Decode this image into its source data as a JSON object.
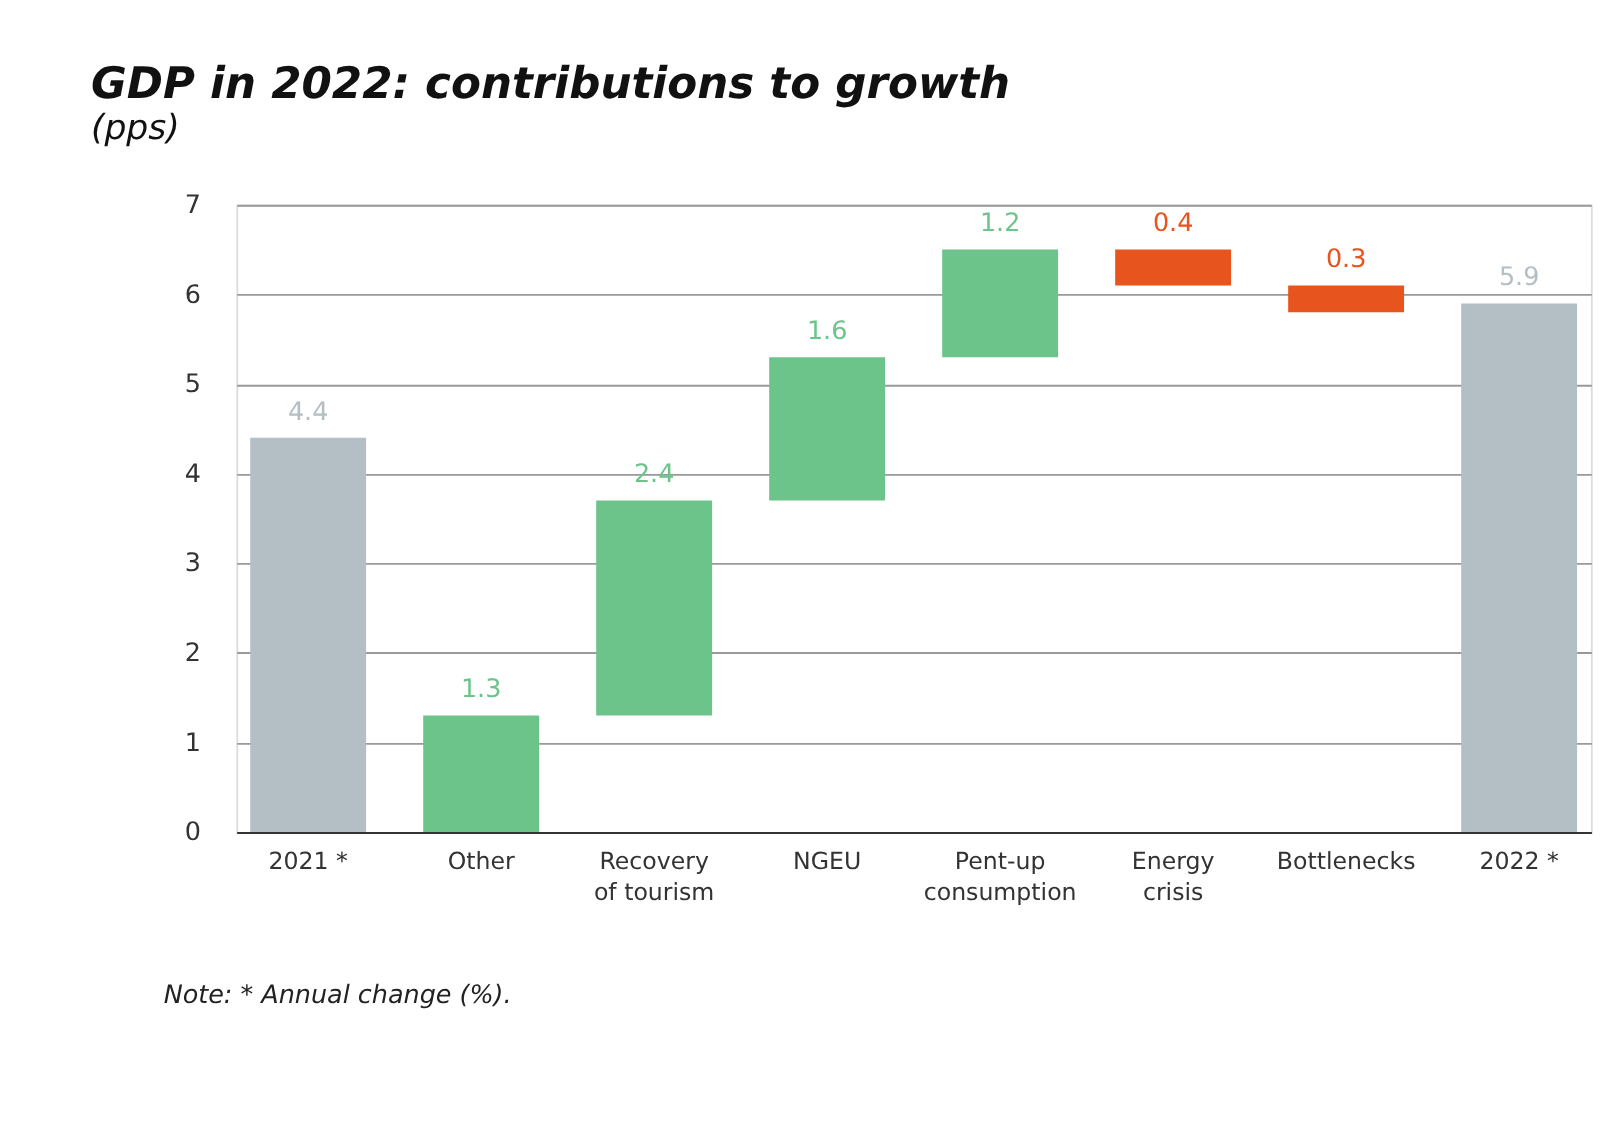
{
  "chart_data": {
    "type": "bar",
    "title": "GDP in 2022: contributions to growth",
    "subtitle": "(pps)",
    "categories": [
      "2021 *",
      "Other",
      "Recovery\nof tourism",
      "NGEU",
      "Pent-up\nconsumption",
      "Energy\ncrisis",
      "Bottlenecks",
      "2022 *"
    ],
    "values": [
      4.4,
      1.3,
      2.4,
      1.6,
      1.2,
      -0.4,
      -0.3,
      5.9
    ],
    "base": [
      0,
      0,
      1.3,
      3.7,
      5.3,
      6.5,
      6.1,
      0
    ],
    "colors": [
      "#b4bfc5",
      "#6cc48a",
      "#6cc48a",
      "#6cc48a",
      "#6cc48a",
      "#e8541e",
      "#e8541e",
      "#b4bfc5"
    ],
    "value_labels": [
      "4.4",
      "1.3",
      "2.4",
      "1.6",
      "1.2",
      "0.4",
      "0.3",
      "5.9"
    ],
    "ylim": [
      0,
      7
    ],
    "yticks": [
      0,
      1,
      2,
      3,
      4,
      5,
      6,
      7
    ],
    "grid": "y",
    "annotations": [
      "Note: * Annual change (%)."
    ]
  }
}
